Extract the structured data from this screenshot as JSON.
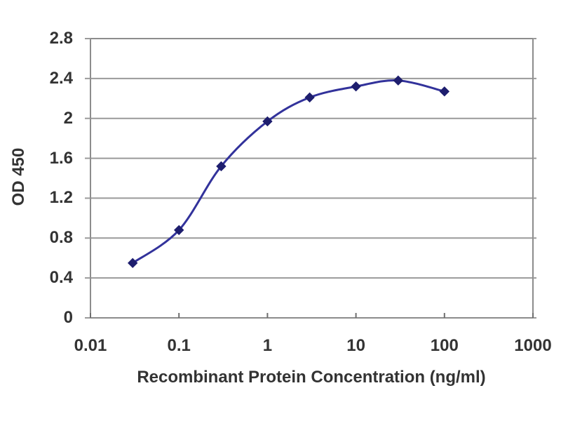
{
  "chart_data": {
    "type": "line",
    "title": "",
    "xlabel": "Recombinant Protein Concentration (ng/ml)",
    "ylabel": "OD 450",
    "x_scale": "log",
    "xlim": [
      0.01,
      1000
    ],
    "ylim": [
      0,
      2.8
    ],
    "x_ticks": [
      0.01,
      0.1,
      1,
      10,
      100,
      1000
    ],
    "x_tick_labels": [
      "0.01",
      "0.1",
      "1",
      "10",
      "100",
      "1000"
    ],
    "y_ticks": [
      0,
      0.4,
      0.8,
      1.2,
      1.6,
      2,
      2.4,
      2.8
    ],
    "y_tick_labels": [
      "0",
      "0.4",
      "0.8",
      "1.2",
      "1.6",
      "2",
      "2.4",
      "2.8"
    ],
    "grid": "horizontal",
    "legend": "none",
    "series": [
      {
        "name": "OD 450",
        "marker": "diamond",
        "x": [
          0.03,
          0.1,
          0.3,
          1,
          3,
          10,
          30,
          100
        ],
        "y": [
          0.55,
          0.88,
          1.52,
          1.97,
          2.21,
          2.32,
          2.38,
          2.27
        ]
      }
    ]
  },
  "colors": {
    "background": "#ffffff",
    "grid_line": "#9a9a9a",
    "plot_border": "#8c8c8c",
    "series_line": "#32329b",
    "marker_fill": "#1e1e6e",
    "text": "#333333"
  }
}
